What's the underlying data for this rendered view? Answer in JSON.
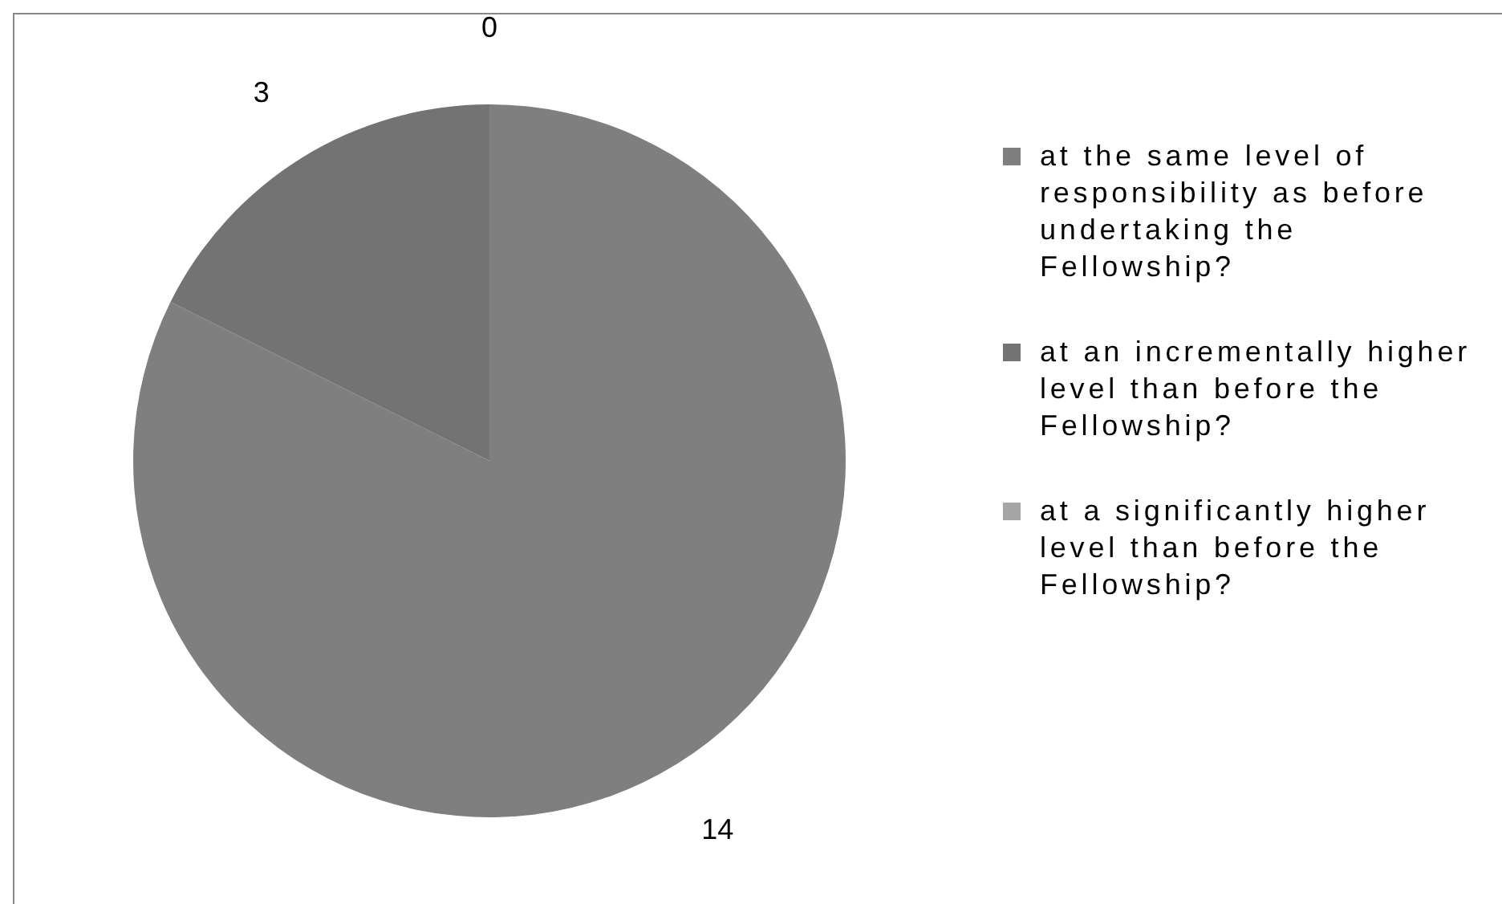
{
  "chart_data": {
    "type": "pie",
    "categories": [
      "at the same level of responsibility as before undertaking the Fellowship?",
      "at an incrementally higher level than before the Fellowship?",
      "at a significantly higher level than before the Fellowship?"
    ],
    "values": [
      14,
      3,
      0
    ],
    "value_labels": [
      "14",
      "3",
      "0"
    ],
    "colors": [
      "#7f7f7f",
      "#737373",
      "#a6a6a6"
    ],
    "legend": "right"
  }
}
